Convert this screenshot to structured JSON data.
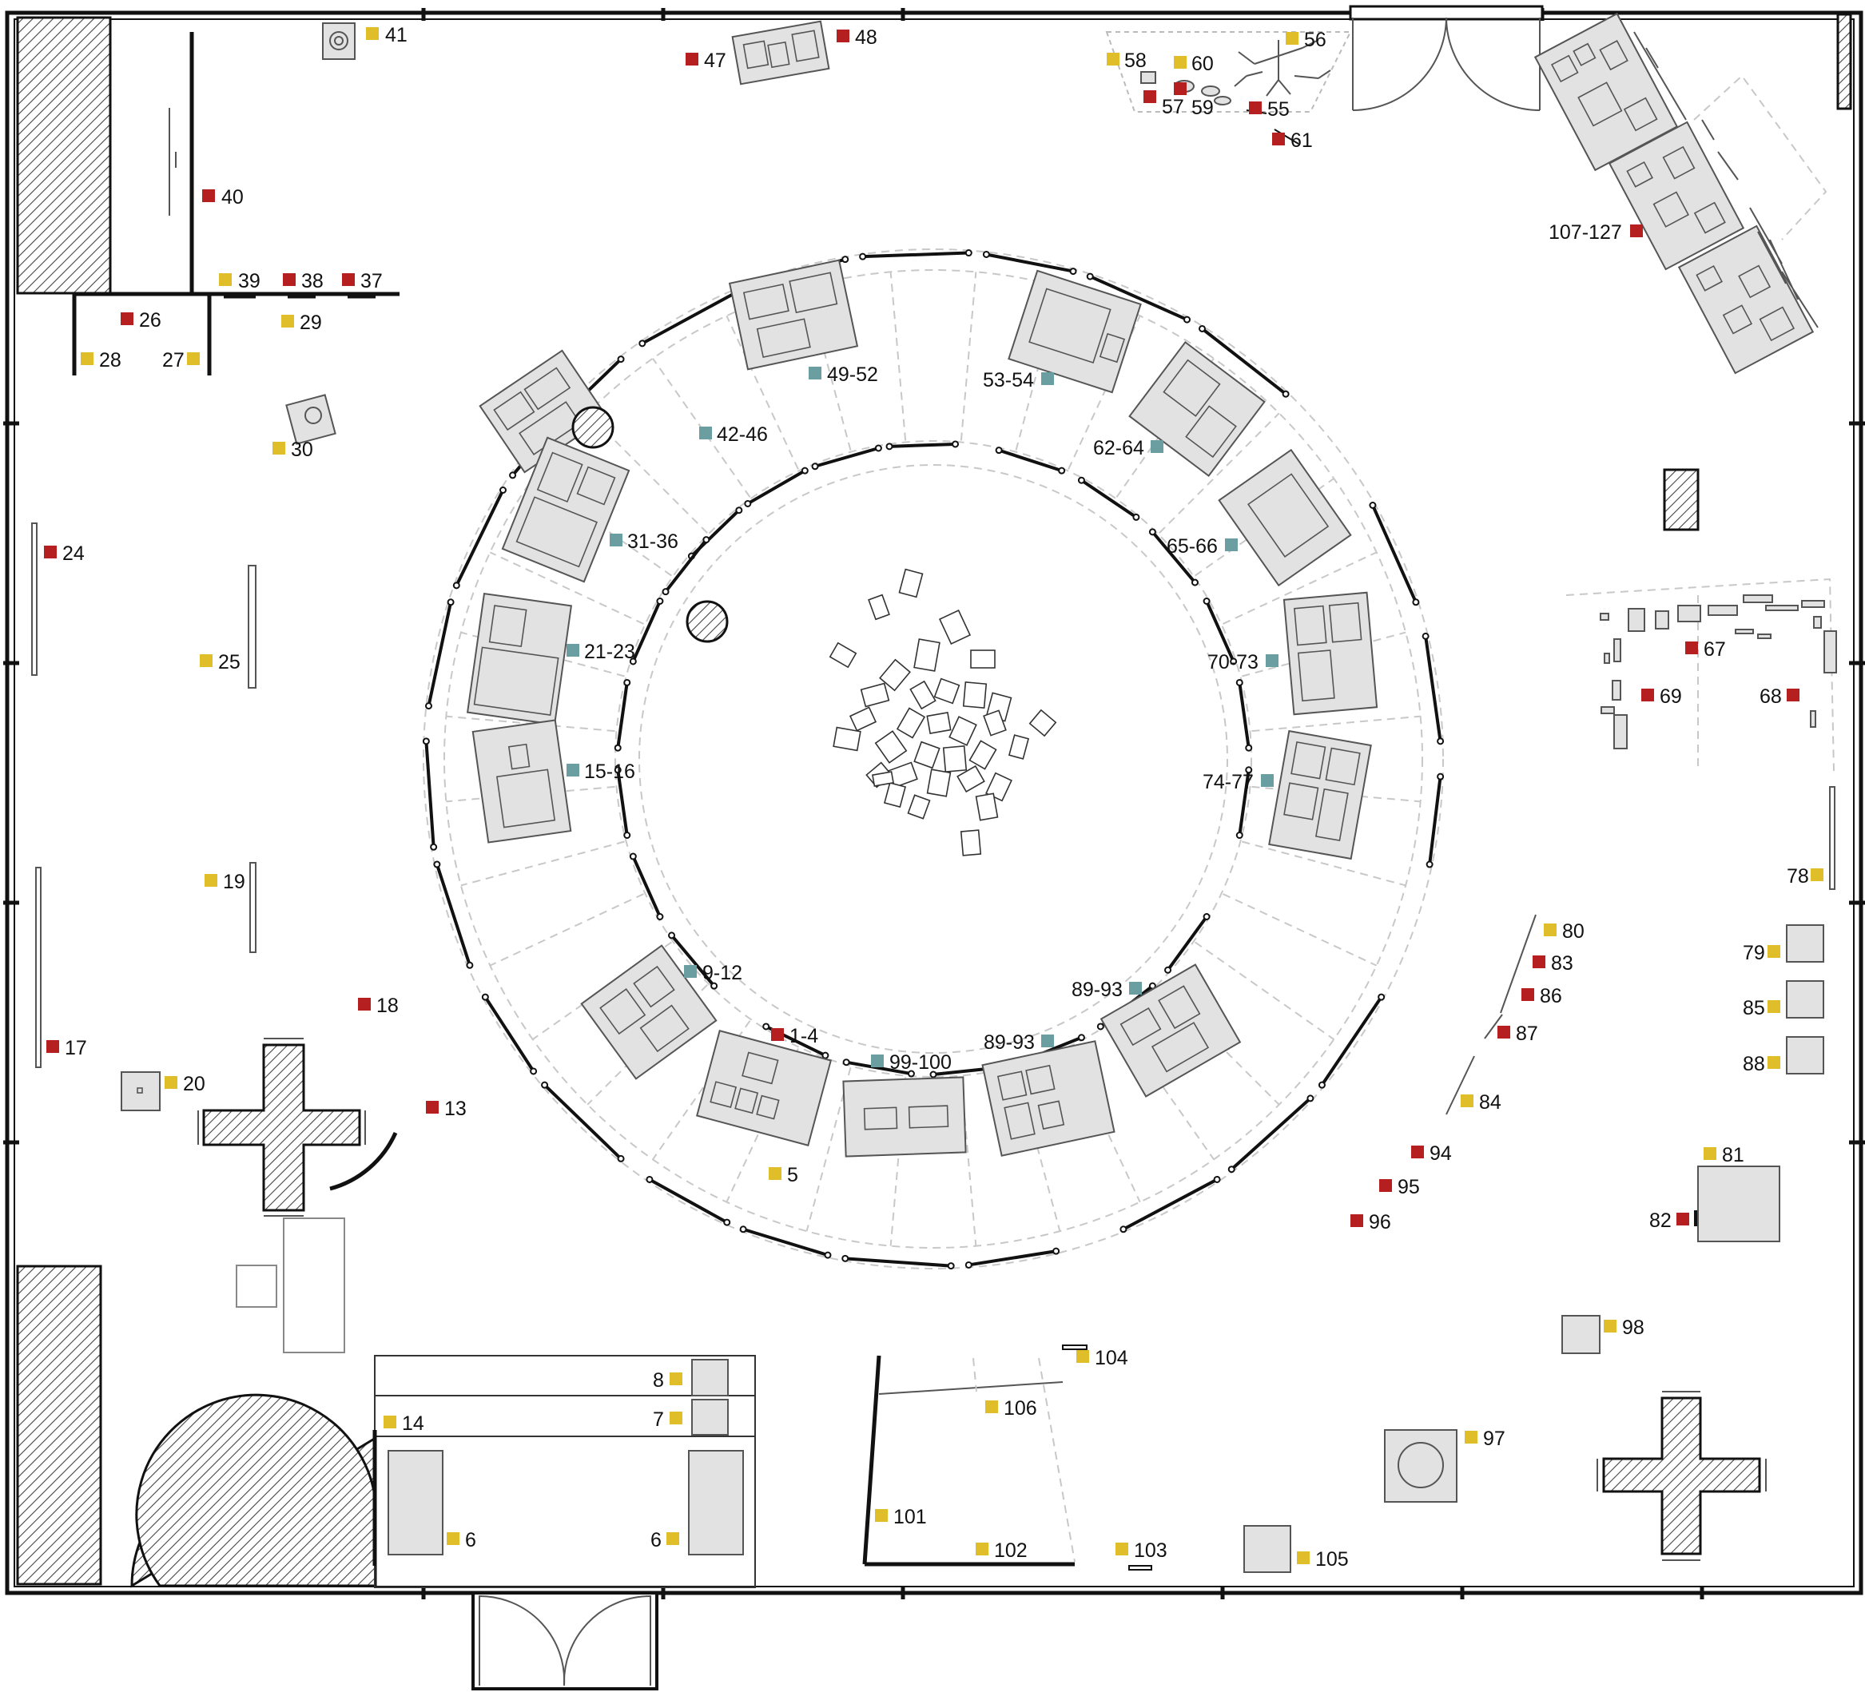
{
  "title": "",
  "legend_colors": {
    "red": "#b61f1f",
    "yellow": "#e0be2a",
    "teal": "#6a9ea0"
  },
  "labels": [
    {
      "id": "l41",
      "text": "41",
      "color": "yellow"
    },
    {
      "id": "l40",
      "text": "40",
      "color": "red"
    },
    {
      "id": "l39",
      "text": "39",
      "color": "yellow"
    },
    {
      "id": "l38",
      "text": "38",
      "color": "red"
    },
    {
      "id": "l37",
      "text": "37",
      "color": "red"
    },
    {
      "id": "l26",
      "text": "26",
      "color": "red"
    },
    {
      "id": "l29",
      "text": "29",
      "color": "yellow"
    },
    {
      "id": "l28",
      "text": "28",
      "color": "yellow"
    },
    {
      "id": "l27",
      "text": "27",
      "color": "yellow"
    },
    {
      "id": "l30",
      "text": "30",
      "color": "yellow"
    },
    {
      "id": "l24",
      "text": "24",
      "color": "red"
    },
    {
      "id": "l25",
      "text": "25",
      "color": "yellow"
    },
    {
      "id": "l19",
      "text": "19",
      "color": "yellow"
    },
    {
      "id": "l18",
      "text": "18",
      "color": "red"
    },
    {
      "id": "l17",
      "text": "17",
      "color": "red"
    },
    {
      "id": "l20",
      "text": "20",
      "color": "yellow"
    },
    {
      "id": "l13",
      "text": "13",
      "color": "red"
    },
    {
      "id": "l14",
      "text": "14",
      "color": "yellow"
    },
    {
      "id": "l8",
      "text": "8",
      "color": "yellow"
    },
    {
      "id": "l7",
      "text": "7",
      "color": "yellow"
    },
    {
      "id": "l6a",
      "text": "6",
      "color": "yellow"
    },
    {
      "id": "l6b",
      "text": "6",
      "color": "yellow"
    },
    {
      "id": "l47",
      "text": "47",
      "color": "red"
    },
    {
      "id": "l48",
      "text": "48",
      "color": "red"
    },
    {
      "id": "l58",
      "text": "58",
      "color": "yellow"
    },
    {
      "id": "l60",
      "text": "60",
      "color": "yellow"
    },
    {
      "id": "l56",
      "text": "56",
      "color": "yellow"
    },
    {
      "id": "l57",
      "text": "57",
      "color": "red"
    },
    {
      "id": "l59",
      "text": "59",
      "color": "red"
    },
    {
      "id": "l55",
      "text": "55",
      "color": "red"
    },
    {
      "id": "l61",
      "text": "61",
      "color": "red"
    },
    {
      "id": "l107",
      "text": "107-127",
      "color": "red"
    },
    {
      "id": "l67",
      "text": "67",
      "color": "red"
    },
    {
      "id": "l69",
      "text": "69",
      "color": "red"
    },
    {
      "id": "l68",
      "text": "68",
      "color": "red"
    },
    {
      "id": "l78",
      "text": "78",
      "color": "yellow"
    },
    {
      "id": "l79",
      "text": "79",
      "color": "yellow"
    },
    {
      "id": "l85",
      "text": "85",
      "color": "yellow"
    },
    {
      "id": "l88",
      "text": "88",
      "color": "yellow"
    },
    {
      "id": "l80",
      "text": "80",
      "color": "yellow"
    },
    {
      "id": "l83",
      "text": "83",
      "color": "red"
    },
    {
      "id": "l86",
      "text": "86",
      "color": "red"
    },
    {
      "id": "l87",
      "text": "87",
      "color": "red"
    },
    {
      "id": "l84",
      "text": "84",
      "color": "yellow"
    },
    {
      "id": "l94",
      "text": "94",
      "color": "red"
    },
    {
      "id": "l95",
      "text": "95",
      "color": "red"
    },
    {
      "id": "l96",
      "text": "96",
      "color": "red"
    },
    {
      "id": "l81",
      "text": "81",
      "color": "yellow"
    },
    {
      "id": "l82",
      "text": "82",
      "color": "red"
    },
    {
      "id": "l98",
      "text": "98",
      "color": "yellow"
    },
    {
      "id": "l97",
      "text": "97",
      "color": "yellow"
    },
    {
      "id": "l104",
      "text": "104",
      "color": "yellow"
    },
    {
      "id": "l106",
      "text": "106",
      "color": "yellow"
    },
    {
      "id": "l101",
      "text": "101",
      "color": "yellow"
    },
    {
      "id": "l102",
      "text": "102",
      "color": "yellow"
    },
    {
      "id": "l103",
      "text": "103",
      "color": "yellow"
    },
    {
      "id": "l105",
      "text": "105",
      "color": "yellow"
    },
    {
      "id": "l5",
      "text": "5",
      "color": "yellow"
    },
    {
      "id": "l1",
      "text": "1-4",
      "color": "red"
    },
    {
      "id": "l9",
      "text": "9-12",
      "color": "teal"
    },
    {
      "id": "l99",
      "text": "99-100",
      "color": "teal"
    },
    {
      "id": "l89a",
      "text": "89-93",
      "color": "teal"
    },
    {
      "id": "l89b",
      "text": "89-93",
      "color": "teal"
    },
    {
      "id": "l15",
      "text": "15-16",
      "color": "teal"
    },
    {
      "id": "l21",
      "text": "21-23",
      "color": "teal"
    },
    {
      "id": "l31",
      "text": "31-36",
      "color": "teal"
    },
    {
      "id": "l42",
      "text": "42-46",
      "color": "teal"
    },
    {
      "id": "l49",
      "text": "49-52",
      "color": "teal"
    },
    {
      "id": "l53",
      "text": "53-54",
      "color": "teal"
    },
    {
      "id": "l62",
      "text": "62-64",
      "color": "teal"
    },
    {
      "id": "l65",
      "text": "65-66",
      "color": "teal"
    },
    {
      "id": "l70",
      "text": "70-73",
      "color": "teal"
    },
    {
      "id": "l74",
      "text": "74-77",
      "color": "teal"
    }
  ]
}
